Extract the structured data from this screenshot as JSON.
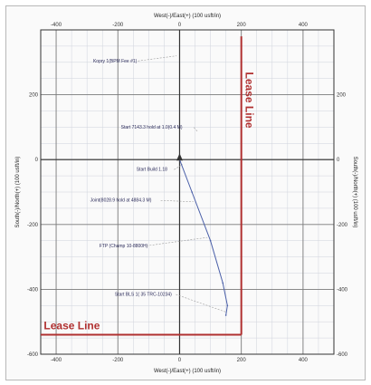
{
  "chart_data": {
    "type": "line",
    "x_axis": {
      "label_top": "West(-)/East(+) (100 usft/in)",
      "label_bottom": "West(-)/East(+) (100 usft/in)",
      "range": [
        -450,
        500
      ],
      "ticks": [
        -400,
        -200,
        0,
        200,
        400
      ]
    },
    "y_axis": {
      "label_left": "South(-)/North(+) (100 usft/in)",
      "label_right": "South(-)/North(+) (100 usft/in)",
      "range": [
        -600,
        400
      ],
      "ticks": [
        200,
        0,
        -200,
        -400,
        -600
      ]
    },
    "grid": true,
    "lease_lines": [
      {
        "label": "Lease Line",
        "orientation": "vertical",
        "x": 200,
        "y_range": [
          -540,
          380
        ]
      },
      {
        "label": "Lease Line",
        "orientation": "horizontal",
        "y": -540,
        "x_range": [
          -450,
          200
        ]
      }
    ],
    "wellbore_path": {
      "x": [
        0,
        40,
        100,
        140,
        155,
        150
      ],
      "y": [
        0,
        -100,
        -250,
        -380,
        -450,
        -480
      ]
    },
    "surface_marker": {
      "x": 0,
      "y": 0
    },
    "annotations": [
      {
        "text": "Kopry 1(BPM Fee #1)",
        "x": -280,
        "y": 300,
        "point": [
          -10,
          320
        ]
      },
      {
        "text": "Start 7143.3 hold at 1.0(0.4 M)",
        "x": -190,
        "y": 95,
        "point": [
          60,
          85
        ]
      },
      {
        "text": "Start Build 1.18",
        "x": -140,
        "y": -35,
        "point": [
          10,
          -15
        ]
      },
      {
        "text": "Joint(8028.9 hold at 4884.3 M)",
        "x": -290,
        "y": -130,
        "point": [
          45,
          -130
        ]
      },
      {
        "text": "FTP (Champ 10-8800H)",
        "x": -260,
        "y": -270,
        "point": [
          90,
          -240
        ]
      },
      {
        "text": "Start BLS 1( 35 TRC-10234)",
        "x": -210,
        "y": -420,
        "point": [
          150,
          -470
        ]
      }
    ],
    "colors": {
      "lease_line": "#b03030",
      "path": "#4a5fa8",
      "leader": "#9a9a9a",
      "grid_major": "#7b7b7b",
      "grid_minor": "#cfd3dc"
    }
  }
}
